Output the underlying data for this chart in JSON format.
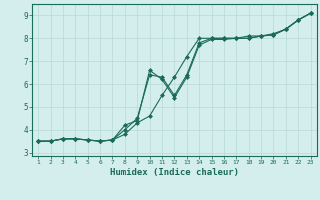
{
  "xlabel": "Humidex (Indice chaleur)",
  "background_color": "#d4eeee",
  "line_color": "#1a6b5a",
  "grid_color": "#b8d8d8",
  "xlim_min": 0.5,
  "xlim_max": 23.5,
  "ylim_min": 2.85,
  "ylim_max": 9.5,
  "yticks": [
    3,
    4,
    5,
    6,
    7,
    8,
    9
  ],
  "xticks": [
    1,
    2,
    3,
    4,
    5,
    6,
    7,
    8,
    9,
    10,
    11,
    12,
    13,
    14,
    15,
    16,
    17,
    18,
    19,
    20,
    21,
    22,
    23
  ],
  "line1_x": [
    1,
    2,
    3,
    4,
    5,
    6,
    7,
    8,
    9,
    10,
    11,
    12,
    13,
    14,
    15,
    16,
    17,
    18,
    19,
    20,
    21,
    22,
    23
  ],
  "line1_y": [
    3.5,
    3.5,
    3.6,
    3.6,
    3.55,
    3.5,
    3.55,
    3.8,
    4.3,
    4.6,
    5.5,
    6.3,
    7.2,
    8.0,
    8.0,
    8.0,
    8.0,
    8.1,
    8.1,
    8.2,
    8.4,
    8.8,
    9.1
  ],
  "line2_x": [
    1,
    2,
    3,
    4,
    5,
    6,
    7,
    8,
    9,
    10,
    11,
    12,
    13,
    14,
    15,
    16,
    17,
    18,
    19,
    20,
    21,
    22,
    23
  ],
  "line2_y": [
    3.5,
    3.5,
    3.6,
    3.6,
    3.55,
    3.5,
    3.55,
    4.0,
    4.5,
    6.4,
    6.3,
    5.5,
    6.4,
    7.8,
    8.0,
    8.0,
    8.0,
    8.0,
    8.1,
    8.15,
    8.4,
    8.8,
    9.1
  ],
  "line3_x": [
    1,
    2,
    3,
    4,
    5,
    6,
    7,
    8,
    9,
    10,
    11,
    12,
    13,
    14,
    15,
    16,
    17,
    18,
    19,
    20,
    21,
    22,
    23
  ],
  "line3_y": [
    3.5,
    3.5,
    3.6,
    3.6,
    3.55,
    3.5,
    3.55,
    4.2,
    4.4,
    6.6,
    6.2,
    5.4,
    6.3,
    7.7,
    7.95,
    7.95,
    8.0,
    8.0,
    8.1,
    8.15,
    8.4,
    8.8,
    9.1
  ]
}
